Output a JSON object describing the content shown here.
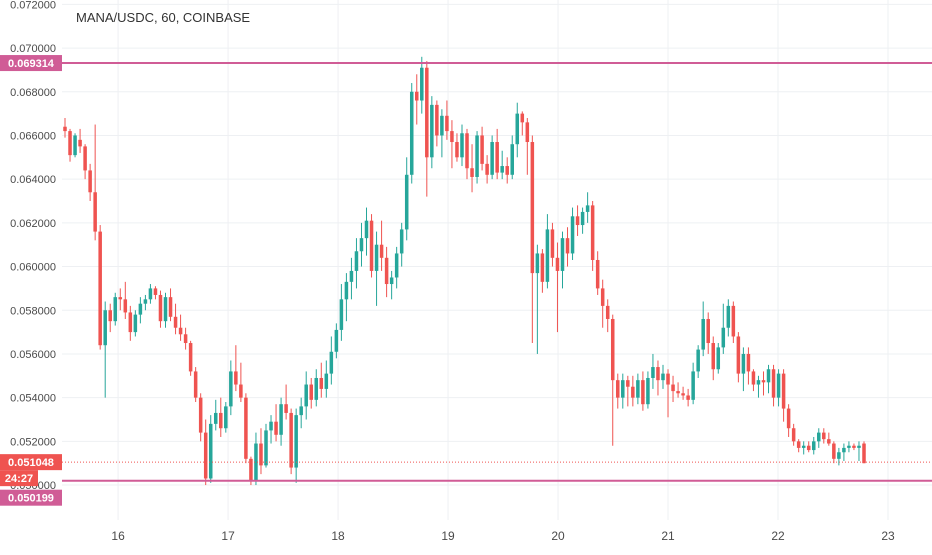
{
  "header": {
    "title": "MANA/USDC, 60, COINBASE"
  },
  "colors": {
    "up": "#26a69a",
    "down": "#ef5350",
    "hline": "#d05c96",
    "grid": "#eef0f3",
    "axis_text": "#4a4a4a"
  },
  "badges": {
    "resistance": {
      "label": "0.069314",
      "color": "#d05c96"
    },
    "last_price": {
      "label": "0.051048",
      "color": "#ef5350"
    },
    "countdown": {
      "label": "24:27",
      "color": "#ef5350"
    },
    "support": {
      "label": "0.050199",
      "color": "#d05c96"
    }
  },
  "chart_data": {
    "type": "candlestick",
    "title": "MANA/USDC, 60, COINBASE",
    "xlabel": "",
    "ylabel": "",
    "ylim": [
      0.0484,
      0.0722
    ],
    "xlim": [
      15.49,
      23.4
    ],
    "grid": true,
    "y_tick_labels": [
      "0.050000",
      "0.052000",
      "0.054000",
      "0.056000",
      "0.058000",
      "0.060000",
      "0.062000",
      "0.064000",
      "0.066000",
      "0.068000",
      "0.070000",
      "0.072000"
    ],
    "x_tick_labels": [
      "16",
      "17",
      "18",
      "19",
      "20",
      "21",
      "22",
      "23"
    ],
    "horizontal_lines": [
      {
        "price": 0.069314,
        "label": "0.069314",
        "style": "solid"
      },
      {
        "price": 0.050199,
        "label": "0.050199",
        "style": "solid"
      },
      {
        "price": 0.051048,
        "label": "0.051048",
        "style": "dotted"
      }
    ],
    "ohlc": [
      [
        0.0664,
        0.0668,
        0.0659,
        0.0662
      ],
      [
        0.0662,
        0.0663,
        0.0648,
        0.0651
      ],
      [
        0.0651,
        0.0661,
        0.065,
        0.066
      ],
      [
        0.0658,
        0.0663,
        0.0652,
        0.0655
      ],
      [
        0.0655,
        0.0656,
        0.064,
        0.0644
      ],
      [
        0.0644,
        0.0647,
        0.063,
        0.0634
      ],
      [
        0.0634,
        0.0665,
        0.0612,
        0.0616
      ],
      [
        0.0616,
        0.0619,
        0.0562,
        0.0564
      ],
      [
        0.0564,
        0.0584,
        0.054,
        0.058
      ],
      [
        0.058,
        0.0583,
        0.057,
        0.0575
      ],
      [
        0.0575,
        0.0588,
        0.0573,
        0.0586
      ],
      [
        0.0586,
        0.059,
        0.058,
        0.0585
      ],
      [
        0.0585,
        0.0593,
        0.0576,
        0.0579
      ],
      [
        0.0579,
        0.0582,
        0.0566,
        0.057
      ],
      [
        0.057,
        0.058,
        0.0568,
        0.0578
      ],
      [
        0.0578,
        0.0586,
        0.0574,
        0.0583
      ],
      [
        0.0583,
        0.0587,
        0.058,
        0.0585
      ],
      [
        0.0585,
        0.0592,
        0.0583,
        0.059
      ],
      [
        0.059,
        0.0591,
        0.0585,
        0.0587
      ],
      [
        0.0587,
        0.0589,
        0.0572,
        0.0575
      ],
      [
        0.0575,
        0.0588,
        0.0572,
        0.0586
      ],
      [
        0.0586,
        0.059,
        0.0575,
        0.0577
      ],
      [
        0.0577,
        0.0583,
        0.0569,
        0.0572
      ],
      [
        0.0572,
        0.0578,
        0.0566,
        0.0569
      ],
      [
        0.0569,
        0.0572,
        0.0562,
        0.0565
      ],
      [
        0.0565,
        0.0566,
        0.055,
        0.0552
      ],
      [
        0.0552,
        0.0554,
        0.0538,
        0.054
      ],
      [
        0.054,
        0.0542,
        0.052,
        0.0524
      ],
      [
        0.0524,
        0.053,
        0.05,
        0.0503
      ],
      [
        0.0503,
        0.0532,
        0.0501,
        0.0528
      ],
      [
        0.0528,
        0.0539,
        0.0525,
        0.0533
      ],
      [
        0.0533,
        0.054,
        0.0522,
        0.0526
      ],
      [
        0.0526,
        0.0538,
        0.0524,
        0.0536
      ],
      [
        0.0536,
        0.0557,
        0.0532,
        0.0552
      ],
      [
        0.0552,
        0.0564,
        0.0543,
        0.0546
      ],
      [
        0.0546,
        0.0556,
        0.0538,
        0.054
      ],
      [
        0.054,
        0.0542,
        0.051,
        0.0512
      ],
      [
        0.0512,
        0.0513,
        0.05,
        0.0502
      ],
      [
        0.0502,
        0.0524,
        0.05,
        0.0519
      ],
      [
        0.0519,
        0.0526,
        0.0505,
        0.0509
      ],
      [
        0.0509,
        0.0528,
        0.0508,
        0.0525
      ],
      [
        0.0525,
        0.0532,
        0.0519,
        0.0529
      ],
      [
        0.0529,
        0.0537,
        0.052,
        0.0523
      ],
      [
        0.0523,
        0.054,
        0.0518,
        0.0537
      ],
      [
        0.0537,
        0.0546,
        0.053,
        0.0533
      ],
      [
        0.0533,
        0.0535,
        0.0505,
        0.0508
      ],
      [
        0.0508,
        0.0535,
        0.0501,
        0.0532
      ],
      [
        0.0532,
        0.054,
        0.0526,
        0.0536
      ],
      [
        0.0536,
        0.0552,
        0.053,
        0.0546
      ],
      [
        0.0546,
        0.0549,
        0.0535,
        0.0539
      ],
      [
        0.0539,
        0.0553,
        0.0536,
        0.0549
      ],
      [
        0.0549,
        0.0556,
        0.054,
        0.0544
      ],
      [
        0.0544,
        0.0557,
        0.054,
        0.0551
      ],
      [
        0.0551,
        0.0568,
        0.0546,
        0.0561
      ],
      [
        0.0561,
        0.0574,
        0.0558,
        0.0571
      ],
      [
        0.0571,
        0.0592,
        0.0566,
        0.0585
      ],
      [
        0.0585,
        0.0597,
        0.0575,
        0.0593
      ],
      [
        0.0593,
        0.0604,
        0.0585,
        0.0598
      ],
      [
        0.0598,
        0.0613,
        0.059,
        0.0607
      ],
      [
        0.0607,
        0.062,
        0.06,
        0.0613
      ],
      [
        0.0613,
        0.0627,
        0.0605,
        0.0621
      ],
      [
        0.0621,
        0.0624,
        0.0595,
        0.0598
      ],
      [
        0.0598,
        0.0616,
        0.0582,
        0.061
      ],
      [
        0.061,
        0.0621,
        0.0598,
        0.0604
      ],
      [
        0.0604,
        0.0609,
        0.0586,
        0.0592
      ],
      [
        0.0592,
        0.0598,
        0.0585,
        0.0595
      ],
      [
        0.0595,
        0.0609,
        0.059,
        0.0606
      ],
      [
        0.0606,
        0.062,
        0.06,
        0.0617
      ],
      [
        0.0617,
        0.065,
        0.0612,
        0.0642
      ],
      [
        0.0642,
        0.0684,
        0.0638,
        0.068
      ],
      [
        0.068,
        0.0688,
        0.0665,
        0.0676
      ],
      [
        0.0676,
        0.0696,
        0.067,
        0.0691
      ],
      [
        0.0691,
        0.0694,
        0.0632,
        0.065
      ],
      [
        0.065,
        0.0678,
        0.0645,
        0.0674
      ],
      [
        0.0674,
        0.0676,
        0.0655,
        0.066
      ],
      [
        0.066,
        0.0672,
        0.065,
        0.0669
      ],
      [
        0.0669,
        0.0676,
        0.0658,
        0.0662
      ],
      [
        0.0662,
        0.0667,
        0.0645,
        0.0657
      ],
      [
        0.0657,
        0.0661,
        0.0648,
        0.065
      ],
      [
        0.065,
        0.0665,
        0.0646,
        0.0661
      ],
      [
        0.0661,
        0.0663,
        0.064,
        0.0645
      ],
      [
        0.0645,
        0.0656,
        0.0634,
        0.0641
      ],
      [
        0.0641,
        0.0662,
        0.0638,
        0.066
      ],
      [
        0.066,
        0.0664,
        0.0644,
        0.0647
      ],
      [
        0.0647,
        0.0651,
        0.0638,
        0.0642
      ],
      [
        0.0642,
        0.066,
        0.064,
        0.0657
      ],
      [
        0.0657,
        0.0663,
        0.064,
        0.0643
      ],
      [
        0.0643,
        0.0653,
        0.064,
        0.0646
      ],
      [
        0.0646,
        0.065,
        0.0638,
        0.0642
      ],
      [
        0.0642,
        0.066,
        0.064,
        0.0656
      ],
      [
        0.0656,
        0.0675,
        0.065,
        0.067
      ],
      [
        0.067,
        0.0671,
        0.066,
        0.0666
      ],
      [
        0.0666,
        0.0668,
        0.0642,
        0.0657
      ],
      [
        0.0657,
        0.066,
        0.0565,
        0.0597
      ],
      [
        0.0597,
        0.061,
        0.056,
        0.0606
      ],
      [
        0.0606,
        0.0608,
        0.0588,
        0.0593
      ],
      [
        0.0593,
        0.0624,
        0.059,
        0.0617
      ],
      [
        0.0617,
        0.062,
        0.06,
        0.0604
      ],
      [
        0.0604,
        0.0611,
        0.057,
        0.0598
      ],
      [
        0.0598,
        0.0616,
        0.059,
        0.0613
      ],
      [
        0.0613,
        0.0618,
        0.06,
        0.0606
      ],
      [
        0.0606,
        0.0627,
        0.0603,
        0.0623
      ],
      [
        0.0623,
        0.0628,
        0.0614,
        0.0619
      ],
      [
        0.0619,
        0.0627,
        0.0615,
        0.0625
      ],
      [
        0.0625,
        0.0634,
        0.062,
        0.0628
      ],
      [
        0.0628,
        0.063,
        0.0598,
        0.0603
      ],
      [
        0.0603,
        0.0607,
        0.0587,
        0.059
      ],
      [
        0.059,
        0.0594,
        0.0572,
        0.0582
      ],
      [
        0.0582,
        0.0585,
        0.057,
        0.0576
      ],
      [
        0.0576,
        0.0578,
        0.0518,
        0.0548
      ],
      [
        0.0548,
        0.0551,
        0.0535,
        0.054
      ],
      [
        0.054,
        0.0551,
        0.0535,
        0.0548
      ],
      [
        0.0548,
        0.055,
        0.0536,
        0.0545
      ],
      [
        0.0545,
        0.055,
        0.0536,
        0.054
      ],
      [
        0.054,
        0.0551,
        0.0537,
        0.0548
      ],
      [
        0.0548,
        0.0552,
        0.0534,
        0.0537
      ],
      [
        0.0537,
        0.0552,
        0.0535,
        0.0549
      ],
      [
        0.0549,
        0.056,
        0.0544,
        0.0554
      ],
      [
        0.0554,
        0.0557,
        0.0541,
        0.0548
      ],
      [
        0.0548,
        0.0555,
        0.0544,
        0.0551
      ],
      [
        0.0551,
        0.0553,
        0.0531,
        0.0546
      ],
      [
        0.0546,
        0.055,
        0.0538,
        0.0543
      ],
      [
        0.0543,
        0.0547,
        0.054,
        0.0542
      ],
      [
        0.0542,
        0.0545,
        0.0539,
        0.0541
      ],
      [
        0.0541,
        0.0544,
        0.0536,
        0.0539
      ],
      [
        0.0539,
        0.0556,
        0.0537,
        0.0552
      ],
      [
        0.0552,
        0.0564,
        0.0549,
        0.0562
      ],
      [
        0.0562,
        0.0584,
        0.0559,
        0.0576
      ],
      [
        0.0576,
        0.0579,
        0.056,
        0.0565
      ],
      [
        0.0565,
        0.0568,
        0.0548,
        0.0553
      ],
      [
        0.0553,
        0.0565,
        0.0551,
        0.0563
      ],
      [
        0.0563,
        0.0583,
        0.056,
        0.0572
      ],
      [
        0.0572,
        0.0585,
        0.0568,
        0.0582
      ],
      [
        0.0582,
        0.0584,
        0.0565,
        0.0568
      ],
      [
        0.0568,
        0.057,
        0.0547,
        0.0551
      ],
      [
        0.0551,
        0.0563,
        0.0543,
        0.056
      ],
      [
        0.056,
        0.0563,
        0.0546,
        0.0552
      ],
      [
        0.0552,
        0.0553,
        0.0543,
        0.0546
      ],
      [
        0.0546,
        0.055,
        0.054,
        0.0548
      ],
      [
        0.0548,
        0.0552,
        0.0541,
        0.0547
      ],
      [
        0.0547,
        0.0555,
        0.0542,
        0.0553
      ],
      [
        0.0553,
        0.0555,
        0.0536,
        0.054
      ],
      [
        0.054,
        0.0553,
        0.0536,
        0.0551
      ],
      [
        0.0551,
        0.0553,
        0.0529,
        0.0535
      ],
      [
        0.0535,
        0.0537,
        0.0522,
        0.0526
      ],
      [
        0.0526,
        0.0528,
        0.0518,
        0.052
      ],
      [
        0.052,
        0.0521,
        0.0515,
        0.0517
      ],
      [
        0.0517,
        0.052,
        0.0514,
        0.0518
      ],
      [
        0.0518,
        0.052,
        0.0515,
        0.0516
      ],
      [
        0.0516,
        0.0522,
        0.0514,
        0.052
      ],
      [
        0.052,
        0.0526,
        0.0517,
        0.0524
      ],
      [
        0.0524,
        0.0526,
        0.0519,
        0.0521
      ],
      [
        0.0521,
        0.0524,
        0.0518,
        0.0519
      ],
      [
        0.0519,
        0.052,
        0.051,
        0.0512
      ],
      [
        0.0512,
        0.0517,
        0.0509,
        0.0515
      ],
      [
        0.0515,
        0.0519,
        0.0511,
        0.0517
      ],
      [
        0.0517,
        0.052,
        0.0515,
        0.0518
      ],
      [
        0.0518,
        0.0519,
        0.0516,
        0.0517
      ],
      [
        0.0517,
        0.052,
        0.0511,
        0.0518
      ],
      [
        0.0519,
        0.052,
        0.051,
        0.051
      ]
    ]
  }
}
